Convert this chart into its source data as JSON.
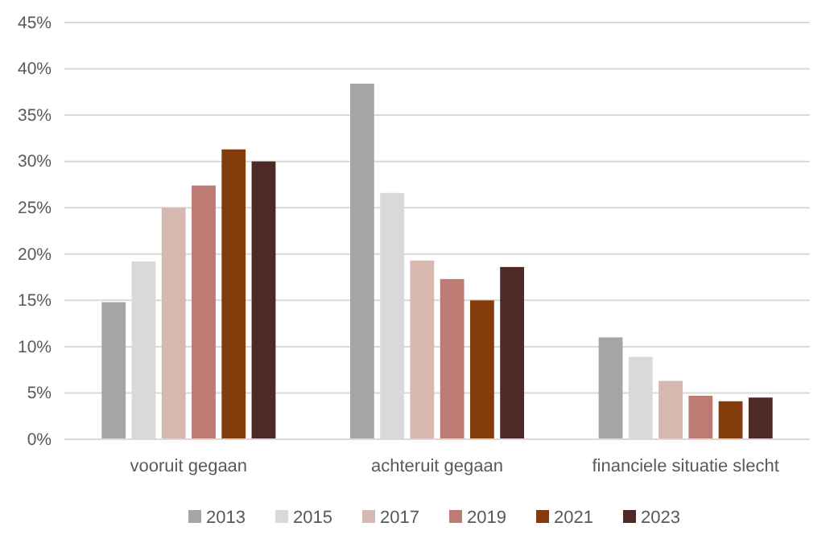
{
  "chart_data": {
    "type": "bar",
    "categories": [
      "vooruit gegaan",
      "achteruit gegaan",
      "financiele situatie slecht"
    ],
    "series": [
      {
        "name": "2013",
        "color": "#a5a5a5",
        "values": [
          14.8,
          38.4,
          11.0
        ]
      },
      {
        "name": "2015",
        "color": "#d9d9d9",
        "values": [
          19.2,
          26.6,
          8.9
        ]
      },
      {
        "name": "2017",
        "color": "#d6b8ae",
        "values": [
          25.0,
          19.3,
          6.3
        ]
      },
      {
        "name": "2019",
        "color": "#bd7b74",
        "values": [
          27.4,
          17.3,
          4.7
        ]
      },
      {
        "name": "2021",
        "color": "#843c0c",
        "values": [
          31.3,
          15.0,
          4.1
        ]
      },
      {
        "name": "2023",
        "color": "#4e2a27",
        "values": [
          30.0,
          18.6,
          4.5
        ]
      }
    ],
    "ylim": [
      0,
      45
    ],
    "yticks": [
      {
        "value": 0,
        "label": "0%"
      },
      {
        "value": 5,
        "label": "5%"
      },
      {
        "value": 10,
        "label": "10%"
      },
      {
        "value": 15,
        "label": "15%"
      },
      {
        "value": 20,
        "label": "20%"
      },
      {
        "value": 25,
        "label": "25%"
      },
      {
        "value": 30,
        "label": "30%"
      },
      {
        "value": 35,
        "label": "35%"
      },
      {
        "value": 40,
        "label": "40%"
      },
      {
        "value": 45,
        "label": "45%"
      }
    ],
    "grid": "y",
    "legend": "bottom"
  }
}
